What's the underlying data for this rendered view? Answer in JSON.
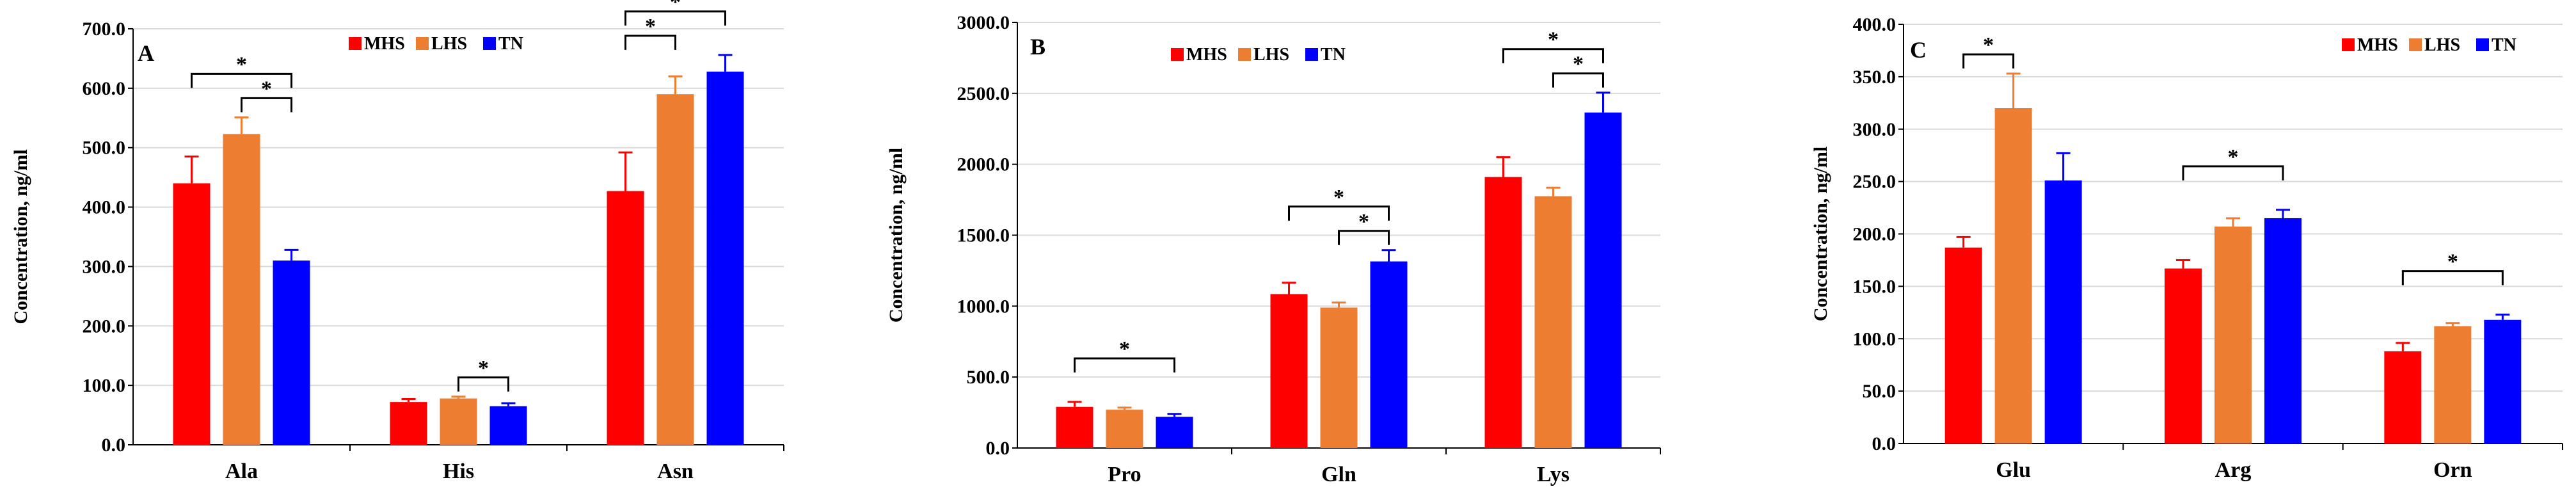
{
  "colors": {
    "MHS": "#ff0000",
    "LHS": "#ed7d31",
    "TN": "#0000ff"
  },
  "legend": [
    "MHS",
    "LHS",
    "TN"
  ],
  "significance_marker": "*",
  "chart_data": [
    {
      "type": "bar",
      "panel": "A",
      "ylabel": "Concentration, ng/ml",
      "ylim": [
        0,
        700
      ],
      "yticks": [
        "0.0",
        "100.0",
        "200.0",
        "300.0",
        "400.0",
        "500.0",
        "600.0",
        "700.0"
      ],
      "categories": [
        "Ala",
        "His",
        "Asn"
      ],
      "series": [
        {
          "name": "MHS",
          "values": [
            440,
            72,
            427
          ],
          "errors": [
            45,
            5,
            65
          ]
        },
        {
          "name": "LHS",
          "values": [
            523,
            78,
            590
          ],
          "errors": [
            28,
            3,
            30
          ]
        },
        {
          "name": "TN",
          "values": [
            310,
            65,
            628
          ],
          "errors": [
            18,
            5,
            28
          ]
        }
      ],
      "significance": [
        {
          "category": 0,
          "from": "MHS",
          "to": "TN",
          "marker": "*"
        },
        {
          "category": 0,
          "from": "LHS",
          "to": "TN",
          "marker": "*"
        },
        {
          "category": 1,
          "from": "LHS",
          "to": "TN",
          "marker": "*"
        },
        {
          "category": 2,
          "from": "MHS",
          "to": "TN",
          "marker": "*"
        },
        {
          "category": 2,
          "from": "MHS",
          "to": "LHS",
          "marker": "*"
        }
      ],
      "legend_position": "top-center"
    },
    {
      "type": "bar",
      "panel": "B",
      "ylabel": "Concentration, ng/ml",
      "ylim": [
        0,
        3000
      ],
      "yticks": [
        "0.0",
        "500.0",
        "1000.0",
        "1500.0",
        "2000.0",
        "2500.0",
        "3000.0"
      ],
      "categories": [
        "Pro",
        "Gln",
        "Lys"
      ],
      "series": [
        {
          "name": "MHS",
          "values": [
            290,
            1085,
            1910
          ],
          "errors": [
            35,
            80,
            140
          ]
        },
        {
          "name": "LHS",
          "values": [
            270,
            990,
            1775
          ],
          "errors": [
            15,
            35,
            60
          ]
        },
        {
          "name": "TN",
          "values": [
            220,
            1315,
            2365
          ],
          "errors": [
            20,
            80,
            140
          ]
        }
      ],
      "significance": [
        {
          "category": 0,
          "from": "MHS",
          "to": "TN",
          "marker": "*"
        },
        {
          "category": 1,
          "from": "MHS",
          "to": "TN",
          "marker": "*"
        },
        {
          "category": 1,
          "from": "LHS",
          "to": "TN",
          "marker": "*"
        },
        {
          "category": 2,
          "from": "MHS",
          "to": "TN",
          "marker": "*"
        },
        {
          "category": 2,
          "from": "LHS",
          "to": "TN",
          "marker": "*"
        }
      ],
      "legend_position": "top-center"
    },
    {
      "type": "bar",
      "panel": "C",
      "ylabel": "Concentration, ng/ml",
      "ylim": [
        0,
        400
      ],
      "yticks": [
        "0.0",
        "50.0",
        "100.0",
        "150.0",
        "200.0",
        "250.0",
        "300.0",
        "350.0",
        "400.0"
      ],
      "categories": [
        "Glu",
        "Arg",
        "Orn"
      ],
      "series": [
        {
          "name": "MHS",
          "values": [
            187,
            167,
            88
          ],
          "errors": [
            10,
            8,
            8
          ]
        },
        {
          "name": "LHS",
          "values": [
            320,
            207,
            112
          ],
          "errors": [
            33,
            8,
            3
          ]
        },
        {
          "name": "TN",
          "values": [
            251,
            215,
            118
          ],
          "errors": [
            26,
            8,
            5
          ]
        }
      ],
      "significance": [
        {
          "category": 0,
          "from": "MHS",
          "to": "LHS",
          "marker": "*"
        },
        {
          "category": 1,
          "from": "MHS",
          "to": "TN",
          "marker": "*"
        },
        {
          "category": 2,
          "from": "MHS",
          "to": "TN",
          "marker": "*"
        }
      ],
      "legend_position": "top-right"
    }
  ]
}
